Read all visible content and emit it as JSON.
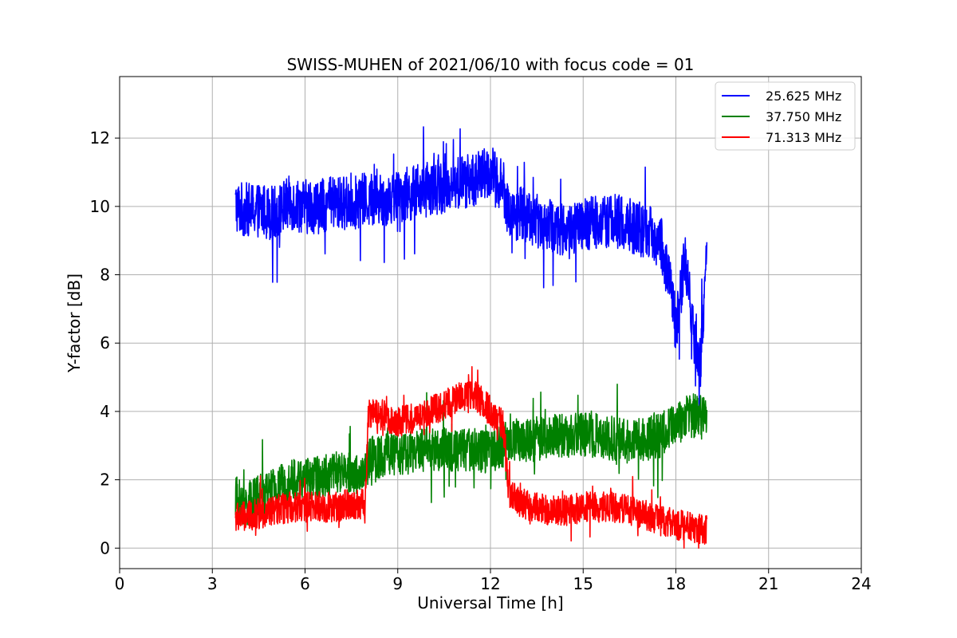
{
  "chart_data": {
    "type": "line",
    "title": "SWISS-MUHEN of 2021/06/10 with focus code = 01",
    "xlabel": "Universal Time [h]",
    "ylabel": "Y-factor [dB]",
    "xlim": [
      0,
      24
    ],
    "ylim": [
      -0.6,
      13.8
    ],
    "xticks": [
      0,
      3,
      6,
      9,
      12,
      15,
      18,
      21,
      24
    ],
    "yticks": [
      0,
      2,
      4,
      6,
      8,
      10,
      12
    ],
    "grid": true,
    "legend_position": "top-right",
    "series": [
      {
        "name": "25.625 MHz",
        "color": "#0000ff",
        "noise": 0.8,
        "x": [
          3.75,
          4.0,
          4.5,
          5.0,
          5.5,
          6.0,
          6.5,
          7.0,
          7.5,
          8.0,
          8.5,
          9.0,
          9.5,
          10.0,
          10.5,
          11.0,
          11.5,
          12.0,
          12.4,
          12.6,
          13.0,
          13.5,
          14.0,
          14.5,
          15.0,
          15.5,
          16.0,
          16.5,
          17.0,
          17.5,
          17.8,
          18.0,
          18.3,
          18.6,
          18.8,
          19.0
        ],
        "y": [
          10.0,
          9.9,
          9.9,
          9.8,
          10.1,
          10.0,
          10.0,
          10.1,
          10.1,
          10.2,
          10.2,
          10.3,
          10.4,
          10.5,
          10.6,
          10.7,
          10.8,
          11.0,
          10.6,
          9.8,
          9.8,
          9.6,
          9.4,
          9.3,
          9.4,
          9.6,
          9.6,
          9.4,
          9.3,
          9.0,
          7.8,
          6.5,
          8.5,
          6.0,
          5.5,
          8.5
        ]
      },
      {
        "name": "37.750 MHz",
        "color": "#008000",
        "noise": 0.65,
        "x": [
          3.75,
          4.0,
          4.5,
          5.0,
          5.5,
          6.0,
          6.5,
          7.0,
          7.5,
          7.95,
          8.05,
          8.5,
          9.0,
          9.5,
          10.0,
          10.5,
          11.0,
          11.5,
          12.0,
          12.4,
          12.6,
          13.0,
          13.5,
          14.0,
          14.5,
          15.0,
          15.5,
          16.0,
          16.5,
          17.0,
          17.5,
          18.0,
          18.5,
          19.0
        ],
        "y": [
          1.5,
          1.2,
          1.5,
          1.7,
          2.0,
          2.0,
          2.1,
          2.2,
          2.2,
          2.1,
          2.6,
          2.7,
          2.8,
          2.8,
          2.9,
          2.9,
          2.9,
          2.9,
          2.8,
          3.0,
          3.2,
          3.1,
          3.2,
          3.3,
          3.3,
          3.3,
          3.3,
          3.2,
          3.1,
          3.2,
          3.3,
          3.6,
          3.9,
          3.8
        ]
      },
      {
        "name": "71.313 MHz",
        "color": "#ff0000",
        "noise": 0.45,
        "x": [
          3.75,
          4.0,
          4.5,
          5.0,
          5.5,
          6.0,
          6.5,
          7.0,
          7.5,
          7.95,
          8.05,
          8.5,
          9.0,
          9.5,
          10.0,
          10.5,
          11.0,
          11.5,
          12.0,
          12.4,
          12.6,
          13.0,
          13.5,
          14.0,
          14.5,
          15.0,
          15.5,
          16.0,
          16.5,
          17.0,
          17.5,
          18.0,
          18.5,
          19.0
        ],
        "y": [
          0.9,
          0.9,
          1.0,
          1.1,
          1.2,
          1.2,
          1.2,
          1.2,
          1.3,
          1.3,
          4.0,
          3.9,
          3.7,
          3.8,
          4.0,
          4.2,
          4.4,
          4.5,
          4.0,
          3.6,
          1.6,
          1.3,
          1.2,
          1.1,
          1.1,
          1.2,
          1.2,
          1.2,
          1.1,
          1.0,
          0.8,
          0.7,
          0.6,
          0.5
        ]
      }
    ]
  }
}
